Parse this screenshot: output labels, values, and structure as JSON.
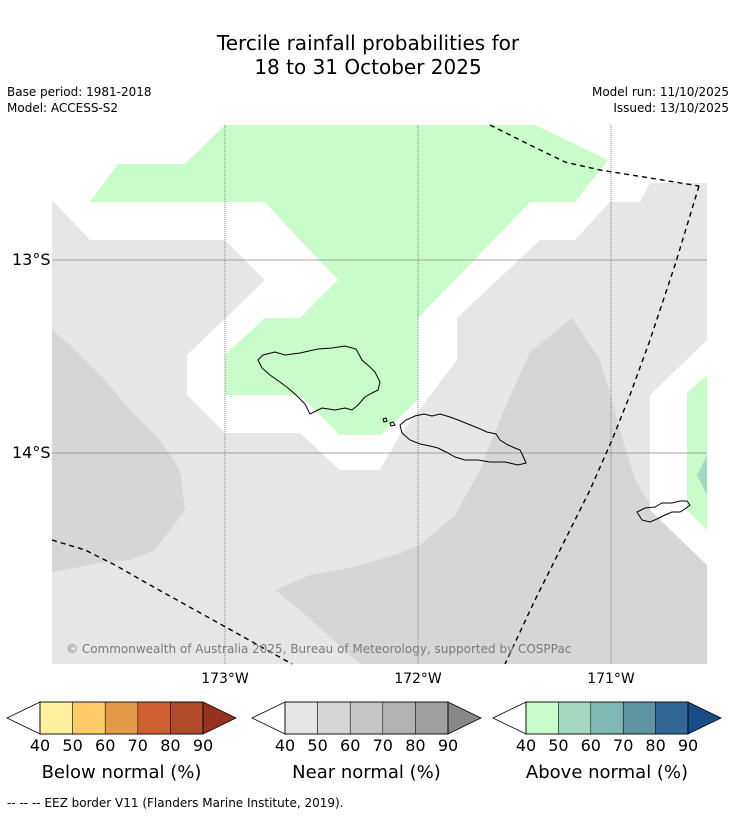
{
  "title": {
    "line1": "Tercile rainfall probabilities for",
    "line2": "18 to 31 October 2025"
  },
  "meta": {
    "base_period": "Base period: 1981-2018",
    "model": "Model: ACCESS-S2",
    "model_run": "Model run: 11/10/2025",
    "issued": "Issued: 13/10/2025"
  },
  "map": {
    "lat_labels": [
      "13°S",
      "14°S"
    ],
    "lon_labels": [
      "173°W",
      "172°W",
      "171°W"
    ],
    "copyright": "© Commonwealth of Australia 2025, Bureau of Meteorology, supported by COSPPac"
  },
  "colorbars": [
    {
      "name": "below",
      "title": "Below normal (%)",
      "ticks": [
        "40",
        "50",
        "60",
        "70",
        "80",
        "90"
      ],
      "colors": [
        "#fff0a0",
        "#fecc66",
        "#e39a48",
        "#cd6132",
        "#b04a2a",
        "#96321f"
      ]
    },
    {
      "name": "near",
      "title": "Near normal (%)",
      "ticks": [
        "40",
        "50",
        "60",
        "70",
        "80",
        "90"
      ],
      "colors": [
        "#e6e6e6",
        "#d6d6d6",
        "#c6c6c6",
        "#b2b2b2",
        "#a0a0a0",
        "#888888"
      ]
    },
    {
      "name": "above",
      "title": "Above normal (%)",
      "ticks": [
        "40",
        "50",
        "60",
        "70",
        "80",
        "90"
      ],
      "colors": [
        "#c8fcc8",
        "#a4d8c0",
        "#80b8b4",
        "#5e94a4",
        "#326898",
        "#184e88"
      ]
    }
  ],
  "footer": "--  --  -- EEZ border V11 (Flanders Marine Institute, 2019)."
}
